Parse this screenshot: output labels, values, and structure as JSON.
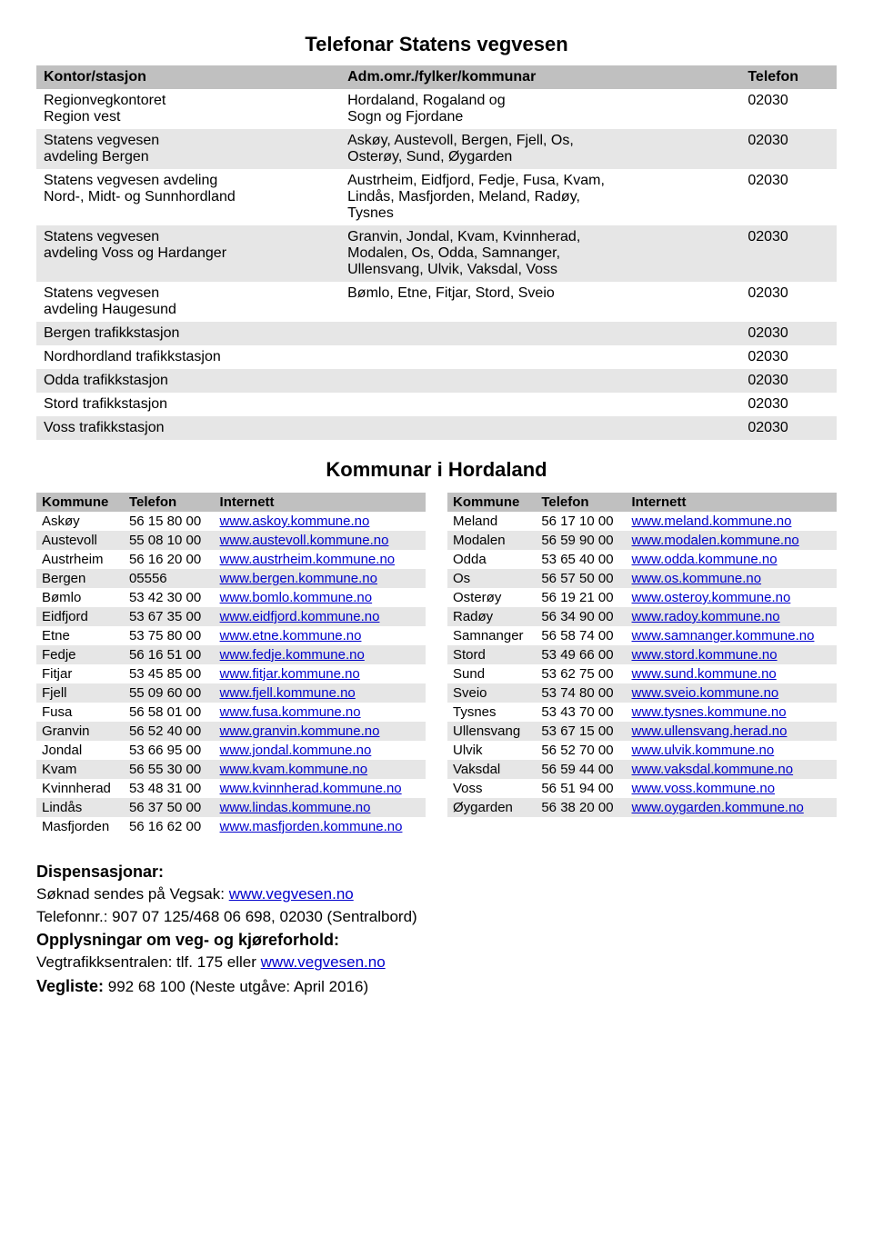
{
  "colors": {
    "header_band": "#c0c0c0",
    "alt_band": "#e6e6e6",
    "bg": "#ffffff",
    "link": "#0000cc"
  },
  "title1": "Telefonar Statens vegvesen",
  "vegvesen": {
    "headers": {
      "c1": "Kontor/stasjon",
      "c2": "Adm.omr./fylker/kommunar",
      "c3": "Telefon"
    },
    "rows": [
      {
        "c1": "Regionvegkontoret\nRegion vest",
        "c2": "Hordaland, Rogaland og\nSogn og Fjordane",
        "c3": "02030",
        "band": "white"
      },
      {
        "c1": "Statens vegvesen\navdeling Bergen",
        "c2": "Askøy, Austevoll, Bergen, Fjell, Os,\nOsterøy, Sund, Øygarden",
        "c3": "02030",
        "band": "light"
      },
      {
        "c1": "Statens vegvesen avdeling\nNord-, Midt- og Sunnhordland",
        "c2": "Austrheim, Eidfjord, Fedje, Fusa, Kvam,\nLindås, Masfjorden, Meland, Radøy,\nTysnes",
        "c3": "02030",
        "band": "white"
      },
      {
        "c1": "Statens vegvesen\navdeling Voss og Hardanger",
        "c2": "Granvin, Jondal, Kvam, Kvinnherad,\nModalen, Os, Odda, Samnanger,\nUllensvang, Ulvik, Vaksdal, Voss",
        "c3": "02030",
        "band": "light"
      },
      {
        "c1": "Statens vegvesen\navdeling Haugesund",
        "c2": "Bømlo, Etne, Fitjar, Stord, Sveio",
        "c3": "02030",
        "band": "white"
      },
      {
        "c1": "Bergen trafikkstasjon",
        "c2": "",
        "c3": "02030",
        "band": "light"
      },
      {
        "c1": "Nordhordland trafikkstasjon",
        "c2": "",
        "c3": "02030",
        "band": "white"
      },
      {
        "c1": "Odda trafikkstasjon",
        "c2": "",
        "c3": "02030",
        "band": "light"
      },
      {
        "c1": "Stord trafikkstasjon",
        "c2": "",
        "c3": "02030",
        "band": "white"
      },
      {
        "c1": "Voss trafikkstasjon",
        "c2": "",
        "c3": "02030",
        "band": "light"
      }
    ]
  },
  "title2": "Kommunar i Hordaland",
  "kommune_headers": {
    "c1": "Kommune",
    "c2": "Telefon",
    "c3": "Internett"
  },
  "kommune_left": [
    {
      "n": "Askøy",
      "t": "56 15 80 00",
      "u": "www.askoy.kommune.no"
    },
    {
      "n": "Austevoll",
      "t": "55 08 10 00",
      "u": "www.austevoll.kommune.no"
    },
    {
      "n": "Austrheim",
      "t": "56 16 20 00",
      "u": "www.austrheim.kommune.no"
    },
    {
      "n": "Bergen",
      "t": "05556",
      "u": "www.bergen.kommune.no"
    },
    {
      "n": "Bømlo",
      "t": "53 42 30 00",
      "u": "www.bomlo.kommune.no"
    },
    {
      "n": "Eidfjord",
      "t": "53 67 35 00",
      "u": "www.eidfjord.kommune.no"
    },
    {
      "n": "Etne",
      "t": "53 75 80 00",
      "u": "www.etne.kommune.no"
    },
    {
      "n": "Fedje",
      "t": "56 16 51 00",
      "u": "www.fedje.kommune.no"
    },
    {
      "n": "Fitjar",
      "t": "53 45 85 00",
      "u": "www.fitjar.kommune.no"
    },
    {
      "n": "Fjell",
      "t": "55 09 60 00",
      "u": "www.fjell.kommune.no"
    },
    {
      "n": "Fusa",
      "t": "56 58 01 00",
      "u": "www.fusa.kommune.no"
    },
    {
      "n": "Granvin",
      "t": "56 52 40 00",
      "u": "www.granvin.kommune.no"
    },
    {
      "n": "Jondal",
      "t": "53 66 95 00",
      "u": "www.jondal.kommune.no"
    },
    {
      "n": "Kvam",
      "t": "56 55 30 00",
      "u": "www.kvam.kommune.no"
    },
    {
      "n": "Kvinnherad",
      "t": "53 48 31 00",
      "u": "www.kvinnherad.kommune.no"
    },
    {
      "n": "Lindås",
      "t": "56 37 50 00",
      "u": "www.lindas.kommune.no"
    },
    {
      "n": "Masfjorden",
      "t": "56 16 62 00",
      "u": "www.masfjorden.kommune.no"
    }
  ],
  "kommune_right": [
    {
      "n": "Meland",
      "t": "56 17 10 00",
      "u": "www.meland.kommune.no"
    },
    {
      "n": "Modalen",
      "t": "56 59 90 00",
      "u": "www.modalen.kommune.no"
    },
    {
      "n": "Odda",
      "t": "53 65 40 00",
      "u": "www.odda.kommune.no"
    },
    {
      "n": "Os",
      "t": "56 57 50 00",
      "u": "www.os.kommune.no"
    },
    {
      "n": "Osterøy",
      "t": "56 19 21 00",
      "u": "www.osteroy.kommune.no"
    },
    {
      "n": "Radøy",
      "t": "56 34 90 00",
      "u": "www.radoy.kommune.no"
    },
    {
      "n": "Samnanger",
      "t": "56 58 74 00",
      "u": "www.samnanger.kommune.no"
    },
    {
      "n": "Stord",
      "t": "53 49 66 00",
      "u": "www.stord.kommune.no"
    },
    {
      "n": "Sund",
      "t": "53 62 75 00",
      "u": "www.sund.kommune.no"
    },
    {
      "n": "Sveio",
      "t": "53 74 80 00",
      "u": "www.sveio.kommune.no"
    },
    {
      "n": "Tysnes",
      "t": "53 43 70 00",
      "u": "www.tysnes.kommune.no"
    },
    {
      "n": "Ullensvang",
      "t": "53 67 15 00",
      "u": "www.ullensvang.herad.no"
    },
    {
      "n": "Ulvik",
      "t": "56 52 70 00",
      "u": "www.ulvik.kommune.no"
    },
    {
      "n": "Vaksdal",
      "t": "56 59 44 00",
      "u": "www.vaksdal.kommune.no"
    },
    {
      "n": "Voss",
      "t": "56 51 94 00",
      "u": "www.voss.kommune.no"
    },
    {
      "n": "Øygarden",
      "t": "56 38 20 00",
      "u": "www.oygarden.kommune.no"
    }
  ],
  "footer": {
    "disp_title": "Dispensasjonar:",
    "disp_line_pre": "Søknad sendes på Vegsak: ",
    "disp_link": "www.vegvesen.no",
    "tel_line": "Telefonnr.: 907 07 125/468 06 698, 02030 (Sentralbord)",
    "opp_title": "Opplysningar om veg- og kjøreforhold:",
    "opp_line_pre": "Vegtrafikksentralen: tlf. 175 eller ",
    "opp_link": "www.vegvesen.no",
    "vegliste_label": "Vegliste:",
    "vegliste_rest": " 992 68 100 (Neste utgåve: April 2016)"
  }
}
